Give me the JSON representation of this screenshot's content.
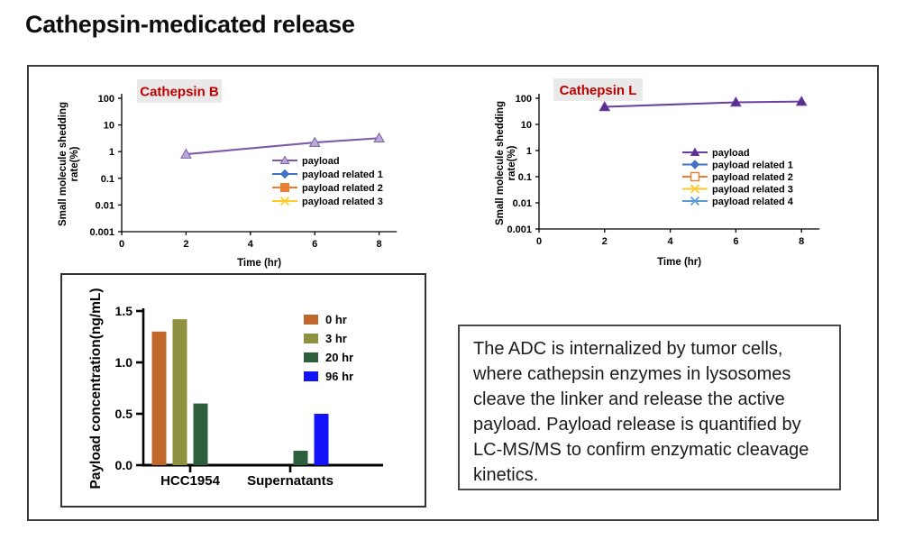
{
  "title": "Cathepsin-medicated release",
  "description_box": {
    "text": "The ADC is internalized by tumor cells, where cathepsin enzymes in lysosomes cleave the linker and release the active payload. Payload release is quantified by LC-MS/MS to confirm enzymatic cleavage kinetics."
  },
  "chart_data": [
    {
      "id": "cathepsin_b",
      "type": "line",
      "title": "Cathepsin B",
      "title_color": "#C00000",
      "title_bg": "#E9E9E9",
      "ylabel_lines": [
        "Small molecule shedding",
        "rate(%)"
      ],
      "xlabel": "Time (hr)",
      "y_scale": "log",
      "y_ticks": [
        "100",
        "10",
        "1",
        "0.1",
        "0.01",
        "0.001"
      ],
      "x_ticks": [
        "0",
        "2",
        "4",
        "6",
        "8"
      ],
      "x_range": [
        0,
        8.55
      ],
      "legend_position": "inside-right",
      "series": [
        {
          "name": "payload",
          "color": "#7A5CA8",
          "marker": "triangle",
          "marker_fill": "#B9ACD6",
          "points": [
            [
              2,
              0.8
            ],
            [
              6,
              2.2
            ],
            [
              8,
              3.2
            ]
          ]
        },
        {
          "name": "payload related 1",
          "color": "#4472C4",
          "marker": "diamond",
          "marker_fill": "#4472C4",
          "points": []
        },
        {
          "name": "payload related 2",
          "color": "#ED7D31",
          "marker": "square",
          "marker_fill": "#ED7D31",
          "points": []
        },
        {
          "name": "payload related 3",
          "color": "#FFC928",
          "marker": "x",
          "marker_fill": "#FFC928",
          "points": []
        }
      ]
    },
    {
      "id": "cathepsin_l",
      "type": "line",
      "title": "Cathepsin L",
      "title_color": "#C00000",
      "title_bg": "#E9E9E9",
      "ylabel_lines": [
        "Small molecule shedding",
        "rate(%)"
      ],
      "xlabel": "Time (hr)",
      "y_scale": "log",
      "y_ticks": [
        "100",
        "10",
        "1",
        "0.1",
        "0.01",
        "0.001"
      ],
      "x_ticks": [
        "0",
        "2",
        "4",
        "6",
        "8"
      ],
      "x_range": [
        0,
        8.55
      ],
      "legend_position": "inside-right",
      "series": [
        {
          "name": "payload",
          "color": "#6A3FA0",
          "marker": "triangle",
          "marker_fill": "#5B2D90",
          "points": [
            [
              2,
              47
            ],
            [
              6,
              70
            ],
            [
              8,
              75
            ]
          ]
        },
        {
          "name": "payload related 1",
          "color": "#4472C4",
          "marker": "diamond",
          "marker_fill": "#4472C4",
          "points": []
        },
        {
          "name": "payload related 2",
          "color": "#ED7D31",
          "marker": "square-open",
          "marker_fill": "#FFFFFF",
          "points": []
        },
        {
          "name": "payload related 3",
          "color": "#FFC928",
          "marker": "x",
          "marker_fill": "#FFC928",
          "points": []
        },
        {
          "name": "payload related 4",
          "color": "#5B9BD5",
          "marker": "asterisk",
          "marker_fill": "#5B9BD5",
          "points": []
        }
      ]
    },
    {
      "id": "payload_concentration",
      "type": "bar",
      "ylabel": "Payload concentration(ng/mL)",
      "y_ticks": [
        "0.0",
        "0.5",
        "1.0",
        "1.5"
      ],
      "ylim": [
        0,
        1.5
      ],
      "categories": [
        "HCC1954",
        "Supernatants"
      ],
      "legend_position": "inside-right",
      "series": [
        {
          "name": "0 hr",
          "color": "#C0682B",
          "values": [
            1.3,
            0
          ]
        },
        {
          "name": "3 hr",
          "color": "#8E9140",
          "values": [
            1.42,
            0
          ]
        },
        {
          "name": "20 hr",
          "color": "#2E5F3C",
          "values": [
            0.6,
            0.14
          ]
        },
        {
          "name": "96 hr",
          "color": "#1414FA",
          "values": [
            0,
            0.5
          ]
        }
      ]
    }
  ]
}
